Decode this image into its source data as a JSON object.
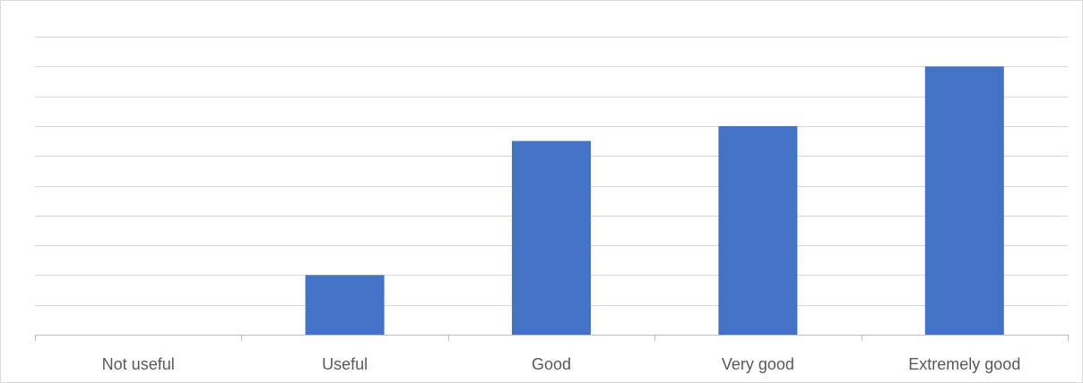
{
  "chart_data": {
    "type": "bar",
    "categories": [
      "Not useful",
      "Useful",
      "Good",
      "Very good",
      "Extremely good"
    ],
    "values": [
      0,
      2,
      6.5,
      7,
      9
    ],
    "ylim": [
      0,
      10
    ],
    "gridlines": 10,
    "grid": true,
    "legend": "none",
    "bar_color": "#4472c4",
    "title": "",
    "xlabel": "",
    "ylabel": ""
  }
}
